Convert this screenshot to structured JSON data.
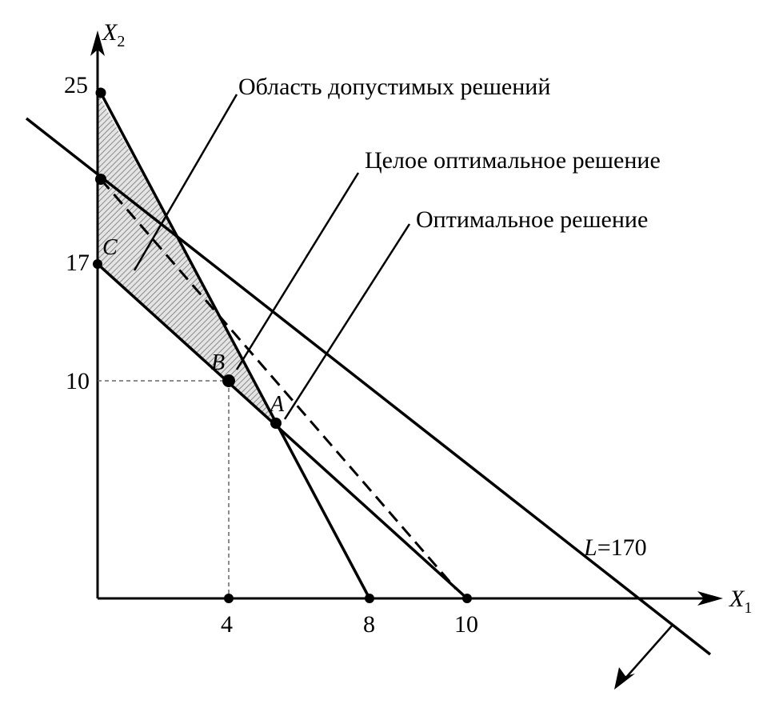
{
  "axes": {
    "x_name": "X",
    "x_sub": "1",
    "y_name": "X",
    "y_sub": "2"
  },
  "ticks": {
    "x": [
      "4",
      "8",
      "10"
    ],
    "y": [
      "25",
      "17",
      "10"
    ]
  },
  "points": {
    "A": "A",
    "B": "B",
    "C": "C"
  },
  "objective": {
    "L": "L",
    "eq": "=170"
  },
  "annotations": {
    "feasible_region": "Область допустимых решений",
    "integer_optimum": "Целое оптимальное решение",
    "optimum": "Оптимальное решение"
  },
  "colors": {
    "line": "#000000",
    "hatch": "#9a9a9a",
    "guide": "#666666"
  }
}
